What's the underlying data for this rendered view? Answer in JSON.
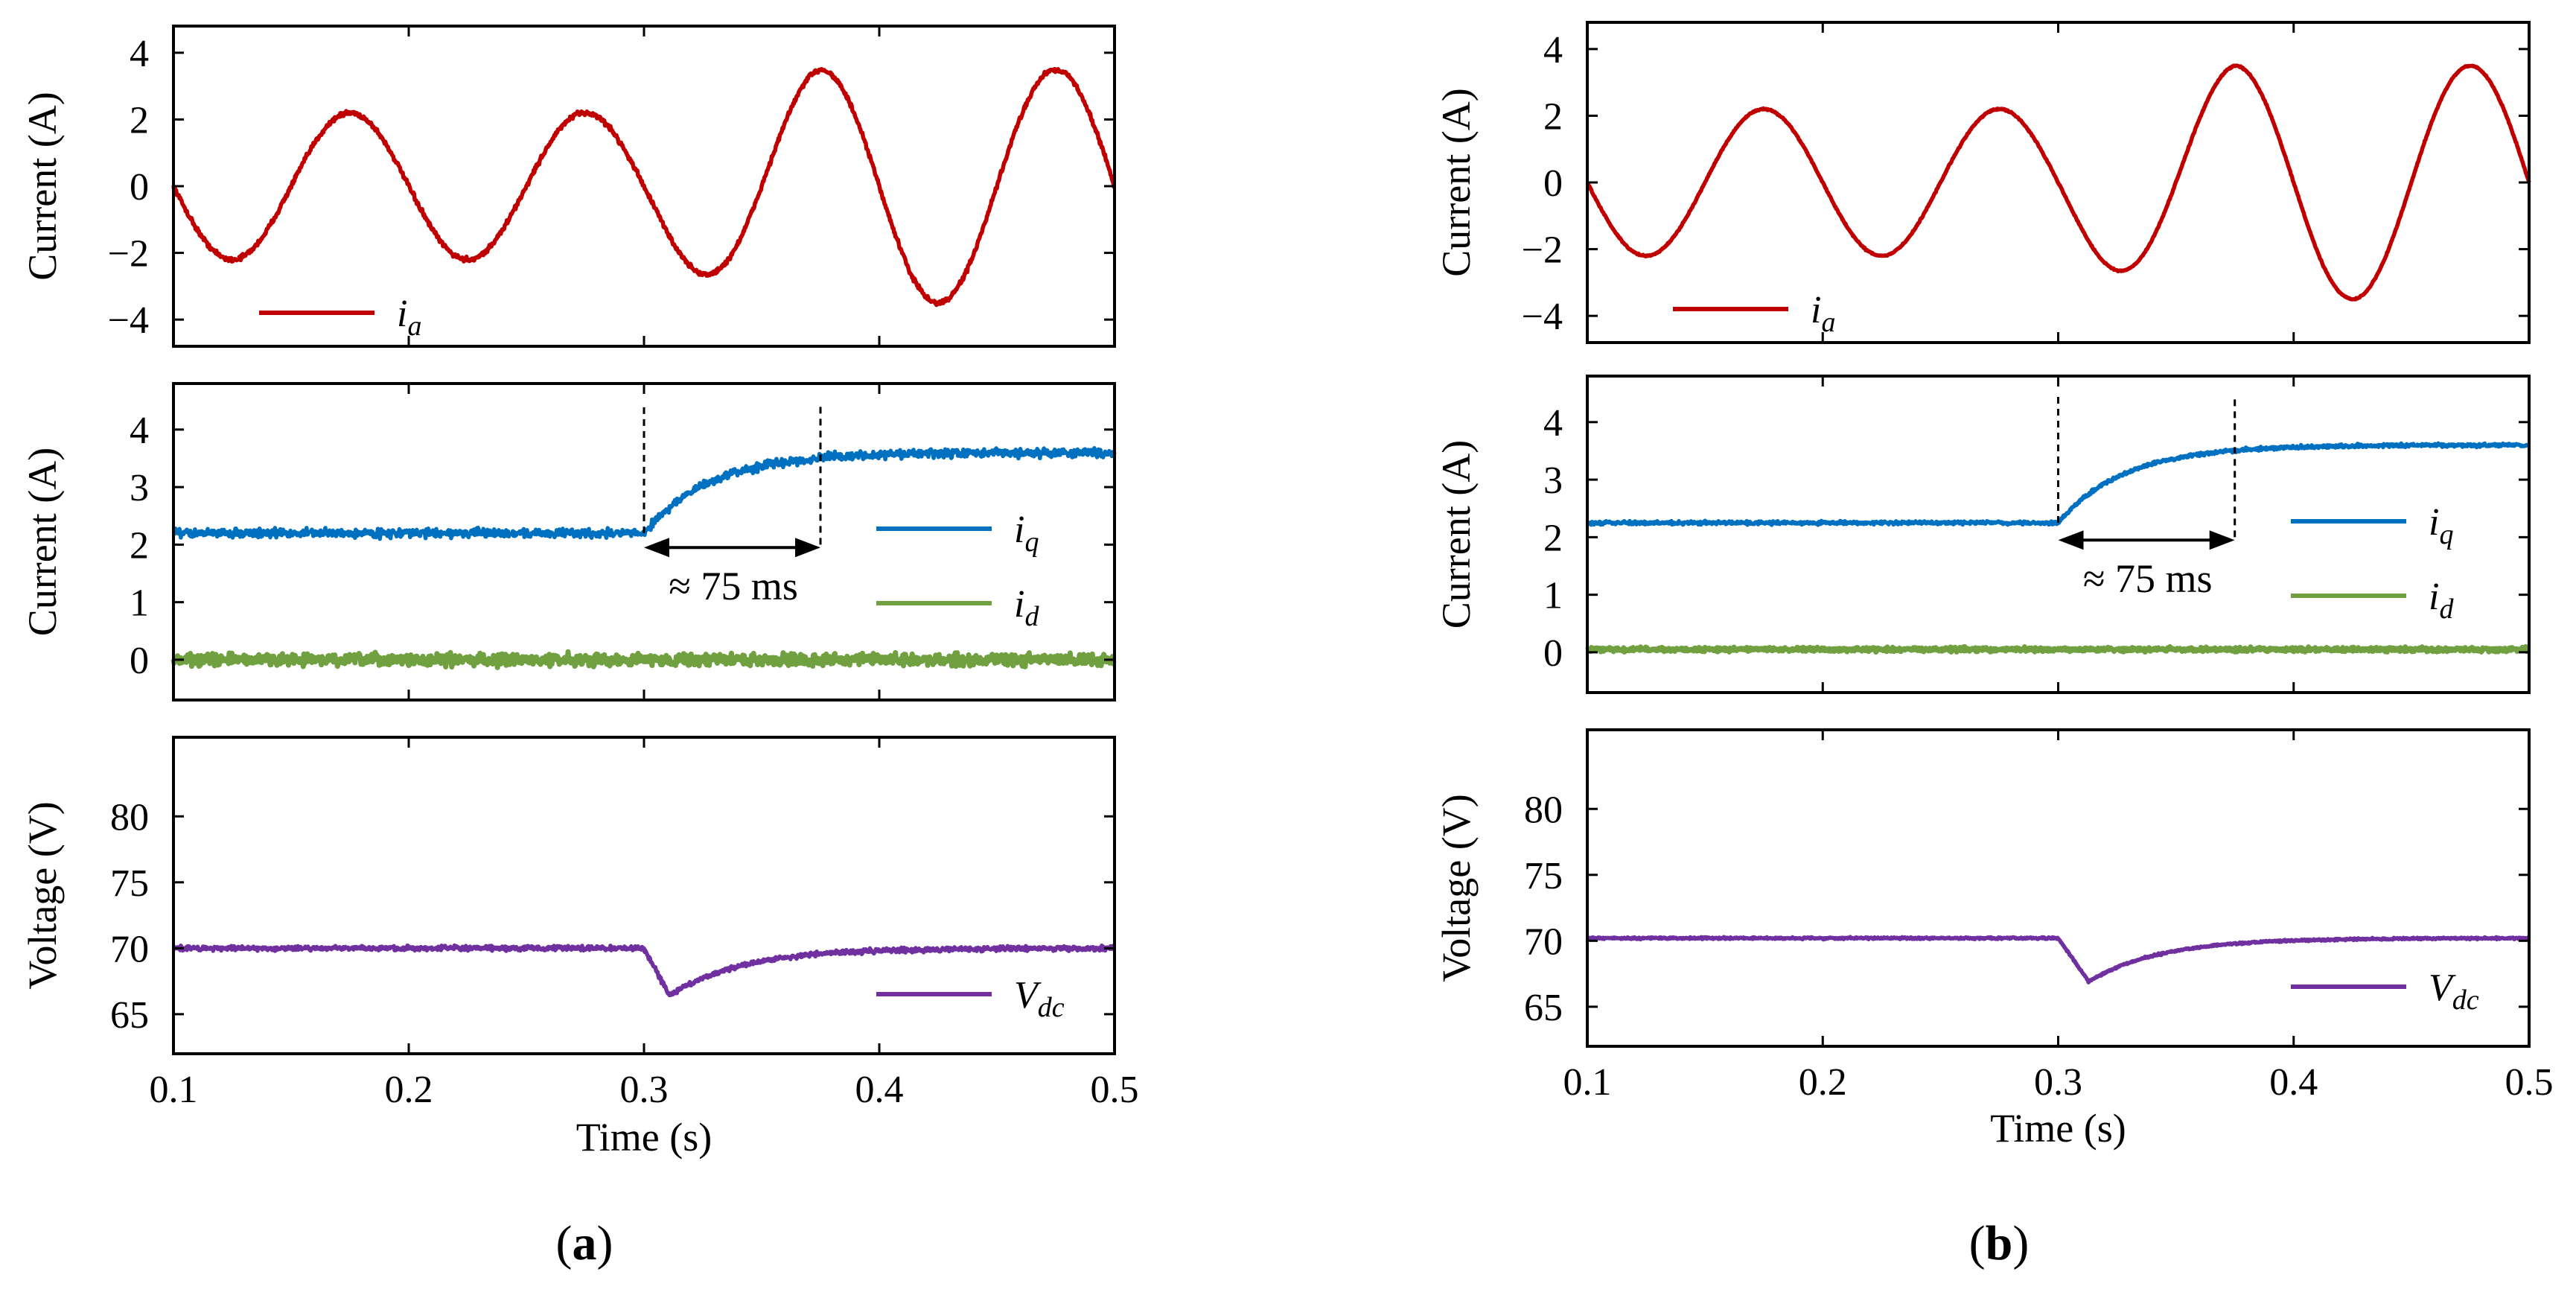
{
  "colors": {
    "ia": "#c00000",
    "iq": "#0070c0",
    "id": "#70a040",
    "vdc": "#7030a0",
    "axis": "#000000"
  },
  "panel_labels": [
    {
      "open": "(",
      "letter": "a",
      "close": ")"
    },
    {
      "open": "(",
      "letter": "b",
      "close": ")"
    }
  ],
  "chart_data": [
    {
      "type": "line",
      "panel": "a",
      "xlabel": "Time (s)",
      "x_ticks": [
        "0.1",
        "0.2",
        "0.3",
        "0.4",
        "0.5"
      ],
      "xlim": [
        0.1,
        0.5
      ],
      "subplots": [
        {
          "id": "current_a",
          "ylabel": "Current (A)",
          "ylim": [
            -4.8,
            4.8
          ],
          "y_ticks": [
            "4",
            "2",
            "0",
            "−2",
            "−4"
          ],
          "y_tick_values": [
            4,
            2,
            0,
            -2,
            -4
          ],
          "legend_position": "bottom-left",
          "series": [
            {
              "key": "ia",
              "name_main": "i",
              "name_sub": "a",
              "model": "sine",
              "freq_hz": 10,
              "amplitude_before": 2.2,
              "amplitude_after": 3.5,
              "step_time": 0.3,
              "settle_time": 0.375,
              "noise": 0.05
            }
          ]
        },
        {
          "id": "current_dq",
          "ylabel": "Current (A)",
          "ylim": [
            -0.7,
            4.8
          ],
          "y_ticks": [
            "4",
            "3",
            "2",
            "1",
            "0"
          ],
          "y_tick_values": [
            4,
            3,
            2,
            1,
            0
          ],
          "legend_position": "right",
          "series": [
            {
              "key": "iq",
              "name_main": "i",
              "name_sub": "q",
              "model": "step",
              "before": 2.2,
              "after": 3.6,
              "step_time": 0.3,
              "tau": 0.028,
              "noise": 0.05
            },
            {
              "key": "id",
              "name_main": "i",
              "name_sub": "d",
              "model": "constant",
              "value": 0.0,
              "noise": 0.07
            }
          ],
          "annotations": [
            {
              "type": "dashed_vline",
              "x": 0.3,
              "y_from": 2.2,
              "y_to": 4.45
            },
            {
              "type": "dashed_vline",
              "x": 0.375,
              "y_from": 2.0,
              "y_to": 4.45
            },
            {
              "type": "double_arrow",
              "x1": 0.3,
              "x2": 0.375,
              "y": 1.95
            },
            {
              "type": "text",
              "text": "≈  75 ms",
              "x": 0.338,
              "y": 1.05
            }
          ]
        },
        {
          "id": "voltage",
          "ylabel": "Voltage (V)",
          "ylim": [
            62,
            86
          ],
          "y_ticks": [
            "80",
            "75",
            "70",
            "65"
          ],
          "y_tick_values": [
            80,
            75,
            70,
            65
          ],
          "legend_position": "bottom-right",
          "series": [
            {
              "key": "vdc",
              "name_main": "V",
              "name_sub": "dc",
              "model": "dip",
              "base": 70,
              "min": 66.4,
              "step_time": 0.3,
              "min_time": 0.311,
              "tau": 0.03,
              "noise": 0.12
            }
          ]
        }
      ]
    },
    {
      "type": "line",
      "panel": "b",
      "xlabel": "Time (s)",
      "x_ticks": [
        "0.1",
        "0.2",
        "0.3",
        "0.4",
        "0.5"
      ],
      "xlim": [
        0.1,
        0.5
      ],
      "subplots": [
        {
          "id": "current_a",
          "ylabel": "Current (A)",
          "ylim": [
            -4.8,
            4.8
          ],
          "y_ticks": [
            "4",
            "2",
            "0",
            "−2",
            "−4"
          ],
          "y_tick_values": [
            4,
            2,
            0,
            -2,
            -4
          ],
          "legend_position": "bottom-left",
          "series": [
            {
              "key": "ia",
              "name_main": "i",
              "name_sub": "a",
              "model": "sine",
              "freq_hz": 10,
              "amplitude_before": 2.2,
              "amplitude_after": 3.5,
              "step_time": 0.3,
              "settle_time": 0.375,
              "noise": 0.015
            }
          ]
        },
        {
          "id": "current_dq",
          "ylabel": "Current (A)",
          "ylim": [
            -0.7,
            4.8
          ],
          "y_ticks": [
            "4",
            "3",
            "2",
            "1",
            "0"
          ],
          "y_tick_values": [
            4,
            3,
            2,
            1,
            0
          ],
          "legend_position": "right",
          "series": [
            {
              "key": "iq",
              "name_main": "i",
              "name_sub": "q",
              "model": "step",
              "before": 2.25,
              "after": 3.6,
              "step_time": 0.3,
              "tau": 0.028,
              "noise": 0.02
            },
            {
              "key": "id",
              "name_main": "i",
              "name_sub": "d",
              "model": "constant",
              "value": 0.05,
              "noise": 0.025
            }
          ],
          "annotations": [
            {
              "type": "dashed_vline",
              "x": 0.3,
              "y_from": 2.25,
              "y_to": 4.45
            },
            {
              "type": "dashed_vline",
              "x": 0.375,
              "y_from": 2.0,
              "y_to": 4.45
            },
            {
              "type": "double_arrow",
              "x1": 0.3,
              "x2": 0.375,
              "y": 1.95
            },
            {
              "type": "text",
              "text": "≈  75 ms",
              "x": 0.338,
              "y": 1.05
            }
          ]
        },
        {
          "id": "voltage",
          "ylabel": "Voltage (V)",
          "ylim": [
            62,
            86
          ],
          "y_ticks": [
            "80",
            "75",
            "70",
            "65"
          ],
          "y_tick_values": [
            80,
            75,
            70,
            65
          ],
          "legend_position": "bottom-right",
          "series": [
            {
              "key": "vdc",
              "name_main": "V",
              "name_sub": "dc",
              "model": "dip",
              "base": 70.2,
              "min": 66.9,
              "step_time": 0.3,
              "min_time": 0.313,
              "tau": 0.03,
              "noise": 0.05
            }
          ]
        }
      ]
    }
  ]
}
